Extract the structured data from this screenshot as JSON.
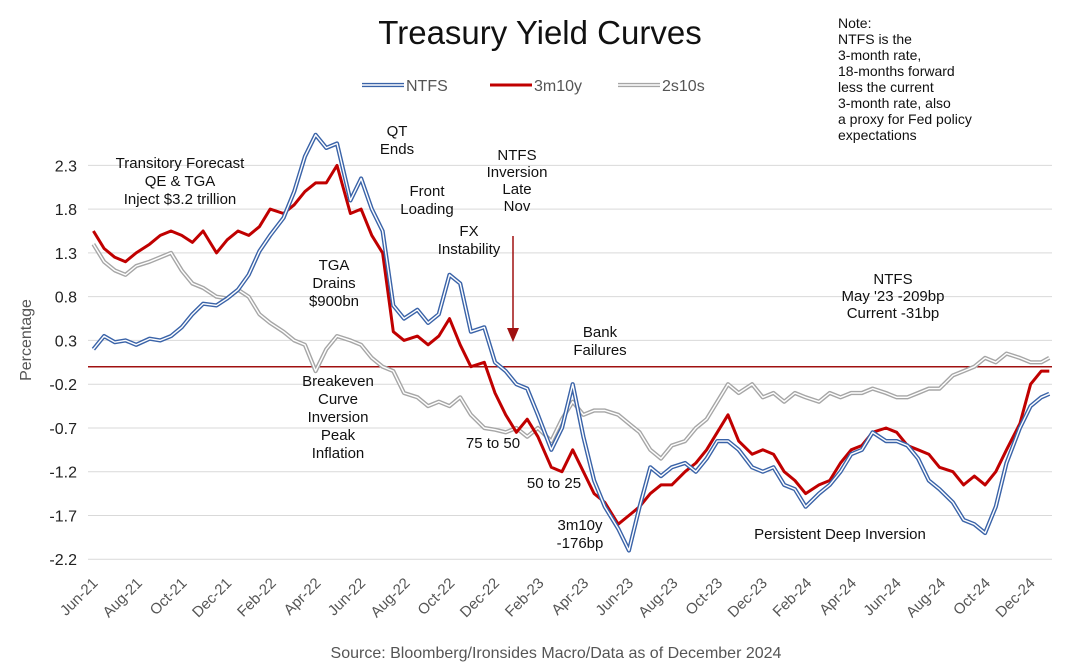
{
  "chart_data": {
    "type": "line",
    "title": "Treasury Yield Curves",
    "ylabel": "Percentage",
    "ylim": [
      -2.3,
      2.75
    ],
    "yticks": [
      2.3,
      1.8,
      1.3,
      0.8,
      0.3,
      -0.2,
      -0.7,
      -1.2,
      -1.7,
      -2.2
    ],
    "ytick_labels": [
      "2.3",
      "1.8",
      "1.3",
      "0.8",
      "0.3",
      "-0.2",
      "-0.7",
      "-1.2",
      "-1.7",
      "-2.2"
    ],
    "xlim": [
      2021.4,
      2025.0
    ],
    "xticks": [
      2021.417,
      2021.583,
      2021.75,
      2021.917,
      2022.083,
      2022.25,
      2022.417,
      2022.583,
      2022.75,
      2022.917,
      2023.083,
      2023.25,
      2023.417,
      2023.583,
      2023.75,
      2023.917,
      2024.083,
      2024.25,
      2024.417,
      2024.583,
      2024.75,
      2024.917
    ],
    "xtick_labels": [
      "Jun-21",
      "Aug-21",
      "Oct-21",
      "Dec-21",
      "Feb-22",
      "Apr-22",
      "Jun-22",
      "Aug-22",
      "Oct-22",
      "Dec-22",
      "Feb-23",
      "Apr-23",
      "Jun-23",
      "Aug-23",
      "Oct-23",
      "Dec-23",
      "Feb-24",
      "Apr-24",
      "Jun-24",
      "Aug-24",
      "Oct-24",
      "Dec-24"
    ],
    "grid": true,
    "legend_position": "top",
    "zero_line": 0,
    "series": [
      {
        "name": "NTFS",
        "color": "#3a63a8",
        "style": "double",
        "x": [
          2021.42,
          2021.46,
          2021.5,
          2021.54,
          2021.58,
          2021.63,
          2021.67,
          2021.71,
          2021.75,
          2021.79,
          2021.83,
          2021.88,
          2021.92,
          2021.96,
          2022.0,
          2022.04,
          2022.08,
          2022.13,
          2022.17,
          2022.21,
          2022.25,
          2022.29,
          2022.33,
          2022.38,
          2022.42,
          2022.46,
          2022.5,
          2022.54,
          2022.58,
          2022.63,
          2022.67,
          2022.71,
          2022.75,
          2022.79,
          2022.83,
          2022.88,
          2022.92,
          2022.96,
          2023.0,
          2023.04,
          2023.08,
          2023.13,
          2023.17,
          2023.21,
          2023.25,
          2023.29,
          2023.33,
          2023.38,
          2023.42,
          2023.46,
          2023.5,
          2023.54,
          2023.58,
          2023.63,
          2023.67,
          2023.71,
          2023.75,
          2023.79,
          2023.83,
          2023.88,
          2023.92,
          2023.96,
          2024.0,
          2024.04,
          2024.08,
          2024.13,
          2024.17,
          2024.21,
          2024.25,
          2024.29,
          2024.33,
          2024.38,
          2024.42,
          2024.46,
          2024.5,
          2024.54,
          2024.58,
          2024.63,
          2024.67,
          2024.71,
          2024.75,
          2024.79,
          2024.83,
          2024.88,
          2024.92,
          2024.96,
          2024.99
        ],
        "y": [
          0.2,
          0.35,
          0.28,
          0.3,
          0.25,
          0.32,
          0.3,
          0.35,
          0.45,
          0.6,
          0.72,
          0.7,
          0.78,
          0.88,
          1.05,
          1.32,
          1.5,
          1.7,
          2.0,
          2.4,
          2.65,
          2.5,
          2.55,
          1.9,
          2.15,
          1.8,
          1.55,
          0.7,
          0.55,
          0.65,
          0.5,
          0.6,
          1.05,
          0.95,
          0.4,
          0.45,
          0.05,
          -0.05,
          -0.2,
          -0.25,
          -0.55,
          -0.95,
          -0.7,
          -0.2,
          -0.8,
          -1.3,
          -1.6,
          -1.85,
          -2.1,
          -1.6,
          -1.15,
          -1.25,
          -1.15,
          -1.1,
          -1.2,
          -1.05,
          -0.85,
          -0.85,
          -0.95,
          -1.15,
          -1.2,
          -1.15,
          -1.35,
          -1.4,
          -1.6,
          -1.45,
          -1.35,
          -1.2,
          -1.0,
          -0.95,
          -0.75,
          -0.85,
          -0.85,
          -0.9,
          -1.05,
          -1.3,
          -1.4,
          -1.55,
          -1.75,
          -1.8,
          -1.9,
          -1.6,
          -1.1,
          -0.7,
          -0.45,
          -0.35,
          -0.31
        ]
      },
      {
        "name": "3m10y",
        "color": "#c00000",
        "style": "solid",
        "x": [
          2021.42,
          2021.46,
          2021.5,
          2021.54,
          2021.58,
          2021.63,
          2021.67,
          2021.71,
          2021.75,
          2021.79,
          2021.83,
          2021.88,
          2021.92,
          2021.96,
          2022.0,
          2022.04,
          2022.08,
          2022.13,
          2022.17,
          2022.21,
          2022.25,
          2022.29,
          2022.33,
          2022.38,
          2022.42,
          2022.46,
          2022.5,
          2022.54,
          2022.58,
          2022.63,
          2022.67,
          2022.71,
          2022.75,
          2022.79,
          2022.83,
          2022.88,
          2022.92,
          2022.96,
          2023.0,
          2023.04,
          2023.08,
          2023.13,
          2023.17,
          2023.21,
          2023.25,
          2023.29,
          2023.33,
          2023.38,
          2023.42,
          2023.46,
          2023.5,
          2023.54,
          2023.58,
          2023.63,
          2023.67,
          2023.71,
          2023.75,
          2023.79,
          2023.83,
          2023.88,
          2023.92,
          2023.96,
          2024.0,
          2024.04,
          2024.08,
          2024.13,
          2024.17,
          2024.21,
          2024.25,
          2024.29,
          2024.33,
          2024.38,
          2024.42,
          2024.46,
          2024.5,
          2024.54,
          2024.58,
          2024.63,
          2024.67,
          2024.71,
          2024.75,
          2024.79,
          2024.83,
          2024.88,
          2024.92,
          2024.96,
          2024.99
        ],
        "y": [
          1.55,
          1.35,
          1.25,
          1.2,
          1.3,
          1.4,
          1.5,
          1.55,
          1.5,
          1.42,
          1.55,
          1.3,
          1.45,
          1.55,
          1.5,
          1.6,
          1.8,
          1.75,
          1.85,
          2.0,
          2.1,
          2.1,
          2.3,
          1.75,
          1.8,
          1.5,
          1.3,
          0.4,
          0.3,
          0.35,
          0.25,
          0.35,
          0.55,
          0.25,
          0.0,
          0.05,
          -0.3,
          -0.55,
          -0.75,
          -0.6,
          -0.8,
          -1.15,
          -1.2,
          -0.95,
          -1.2,
          -1.45,
          -1.55,
          -1.8,
          -1.7,
          -1.6,
          -1.45,
          -1.35,
          -1.35,
          -1.2,
          -1.1,
          -0.95,
          -0.75,
          -0.55,
          -0.85,
          -1.0,
          -0.95,
          -1.0,
          -1.2,
          -1.3,
          -1.45,
          -1.35,
          -1.3,
          -1.1,
          -0.95,
          -0.9,
          -0.75,
          -0.7,
          -0.75,
          -0.9,
          -0.95,
          -1.0,
          -1.15,
          -1.2,
          -1.35,
          -1.25,
          -1.35,
          -1.2,
          -0.95,
          -0.65,
          -0.2,
          -0.05,
          -0.05
        ]
      },
      {
        "name": "2s10s",
        "color": "#a6a6a6",
        "style": "double",
        "x": [
          2021.42,
          2021.46,
          2021.5,
          2021.54,
          2021.58,
          2021.63,
          2021.67,
          2021.71,
          2021.75,
          2021.79,
          2021.83,
          2021.88,
          2021.92,
          2021.96,
          2022.0,
          2022.04,
          2022.08,
          2022.13,
          2022.17,
          2022.21,
          2022.25,
          2022.29,
          2022.33,
          2022.38,
          2022.42,
          2022.46,
          2022.5,
          2022.54,
          2022.58,
          2022.63,
          2022.67,
          2022.71,
          2022.75,
          2022.79,
          2022.83,
          2022.88,
          2022.92,
          2022.96,
          2023.0,
          2023.04,
          2023.08,
          2023.13,
          2023.17,
          2023.21,
          2023.25,
          2023.29,
          2023.33,
          2023.38,
          2023.42,
          2023.46,
          2023.5,
          2023.54,
          2023.58,
          2023.63,
          2023.67,
          2023.71,
          2023.75,
          2023.79,
          2023.83,
          2023.88,
          2023.92,
          2023.96,
          2024.0,
          2024.04,
          2024.08,
          2024.13,
          2024.17,
          2024.21,
          2024.25,
          2024.29,
          2024.33,
          2024.38,
          2024.42,
          2024.46,
          2024.5,
          2024.54,
          2024.58,
          2024.63,
          2024.67,
          2024.71,
          2024.75,
          2024.79,
          2024.83,
          2024.88,
          2024.92,
          2024.96,
          2024.99
        ],
        "y": [
          1.4,
          1.2,
          1.1,
          1.05,
          1.15,
          1.2,
          1.25,
          1.3,
          1.1,
          0.95,
          0.9,
          0.8,
          0.78,
          0.88,
          0.8,
          0.6,
          0.5,
          0.4,
          0.3,
          0.25,
          -0.05,
          0.2,
          0.35,
          0.3,
          0.25,
          0.1,
          0.0,
          -0.05,
          -0.3,
          -0.35,
          -0.45,
          -0.4,
          -0.45,
          -0.35,
          -0.55,
          -0.7,
          -0.72,
          -0.75,
          -0.7,
          -0.8,
          -0.7,
          -0.85,
          -0.6,
          -0.4,
          -0.55,
          -0.5,
          -0.5,
          -0.55,
          -0.65,
          -0.75,
          -0.95,
          -1.05,
          -0.9,
          -0.85,
          -0.7,
          -0.6,
          -0.4,
          -0.2,
          -0.3,
          -0.2,
          -0.35,
          -0.3,
          -0.4,
          -0.3,
          -0.35,
          -0.4,
          -0.3,
          -0.35,
          -0.3,
          -0.3,
          -0.25,
          -0.3,
          -0.35,
          -0.35,
          -0.3,
          -0.25,
          -0.25,
          -0.1,
          -0.05,
          0.0,
          0.1,
          0.05,
          0.15,
          0.1,
          0.05,
          0.05,
          0.1
        ]
      }
    ],
    "annotations": [
      {
        "name": "transitory",
        "lines": [
          "Transitory Forecast",
          "QE & TGA",
          "Inject $3.2 trillion"
        ]
      },
      {
        "name": "qt-ends",
        "lines": [
          "QT",
          "Ends"
        ]
      },
      {
        "name": "front-loading",
        "lines": [
          "Front",
          "Loading"
        ]
      },
      {
        "name": "fx-instability",
        "lines": [
          "FX",
          "Instability"
        ]
      },
      {
        "name": "ntfs-inversion",
        "lines": [
          "NTFS",
          "Inversion",
          "Late",
          "Nov"
        ]
      },
      {
        "name": "tga-drains",
        "lines": [
          "TGA",
          "Drains",
          "$900bn"
        ]
      },
      {
        "name": "breakeven",
        "lines": [
          "Breakeven",
          "Curve",
          "Inversion",
          "Peak",
          "Inflation"
        ]
      },
      {
        "name": "bank-failures",
        "lines": [
          "Bank",
          "Failures"
        ]
      },
      {
        "name": "75-to-50",
        "lines": [
          "75 to 50"
        ]
      },
      {
        "name": "50-to-25",
        "lines": [
          "50 to 25"
        ]
      },
      {
        "name": "3m10y-min",
        "lines": [
          "3m10y",
          "-176bp"
        ]
      },
      {
        "name": "persistent",
        "lines": [
          "Persistent Deep Inversion"
        ]
      },
      {
        "name": "ntfs-may",
        "lines": [
          "NTFS",
          "May '23 -209bp",
          "Current  -31bp"
        ]
      }
    ],
    "note": [
      "Note:",
      "NTFS is the",
      "3-month rate,",
      "18-months forward",
      "less the current",
      "3-month rate, also",
      "a proxy for Fed policy",
      "expectations"
    ],
    "source": "Source: Bloomberg/Ironsides Macro/Data as of December 2024"
  }
}
